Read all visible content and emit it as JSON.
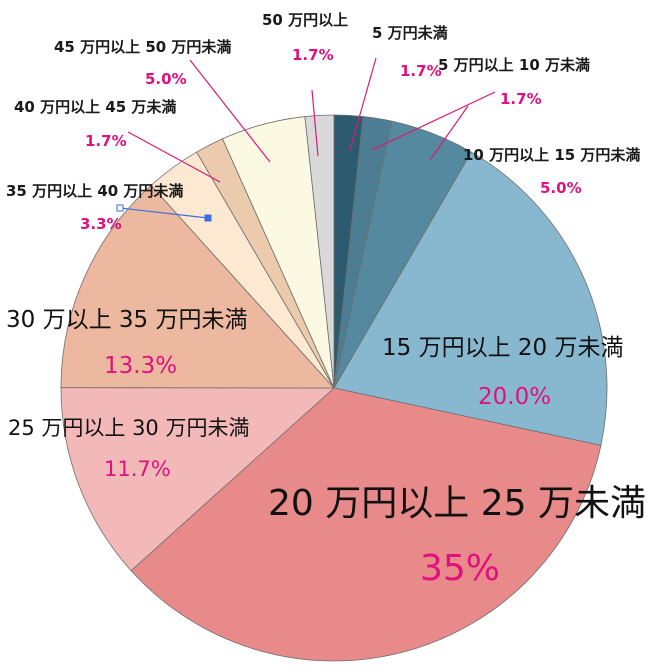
{
  "chart_data": {
    "type": "pie",
    "start_angle_deg": 0,
    "direction": "clockwise",
    "slices": [
      {
        "label": "5 万円未満",
        "percent_label": "1.7%",
        "value": 1.7,
        "color": "#2c5a6e"
      },
      {
        "label": "5 万円以上 10 万未満",
        "percent_label": "1.7%",
        "value": 1.7,
        "color": "#4c7d92"
      },
      {
        "label": "10 万円以上 15 万円未満",
        "percent_label": "5.0%",
        "value": 5.0,
        "color": "#5489a0"
      },
      {
        "label": "15 万円以上 20 万未満",
        "percent_label": "20.0%",
        "value": 20.0,
        "color": "#87b8cf"
      },
      {
        "label": "20 万円以上 25 万未満",
        "percent_label": "35%",
        "value": 35.0,
        "color": "#e88a8a"
      },
      {
        "label": "25 万円以上 30 万円未満",
        "percent_label": "11.7%",
        "value": 11.7,
        "color": "#f3b9b9"
      },
      {
        "label": "30 万以上 35 万円未満",
        "percent_label": "13.3%",
        "value": 13.3,
        "color": "#ecb8a0"
      },
      {
        "label": "35 万円以上 40 万円未満",
        "percent_label": "3.3%",
        "value": 3.3,
        "color": "#fde8d2"
      },
      {
        "label": "40 万円以上 45 万未満",
        "percent_label": "1.7%",
        "value": 1.7,
        "color": "#eccbac"
      },
      {
        "label": "45 万円以上 50 万円未満",
        "percent_label": "5.0%",
        "value": 5.0,
        "color": "#fcf9e2"
      },
      {
        "label": "50 万円以上",
        "percent_label": "1.7%",
        "value": 1.7,
        "color": "#d9d9d9"
      }
    ],
    "percent_color": "#e0117f"
  }
}
